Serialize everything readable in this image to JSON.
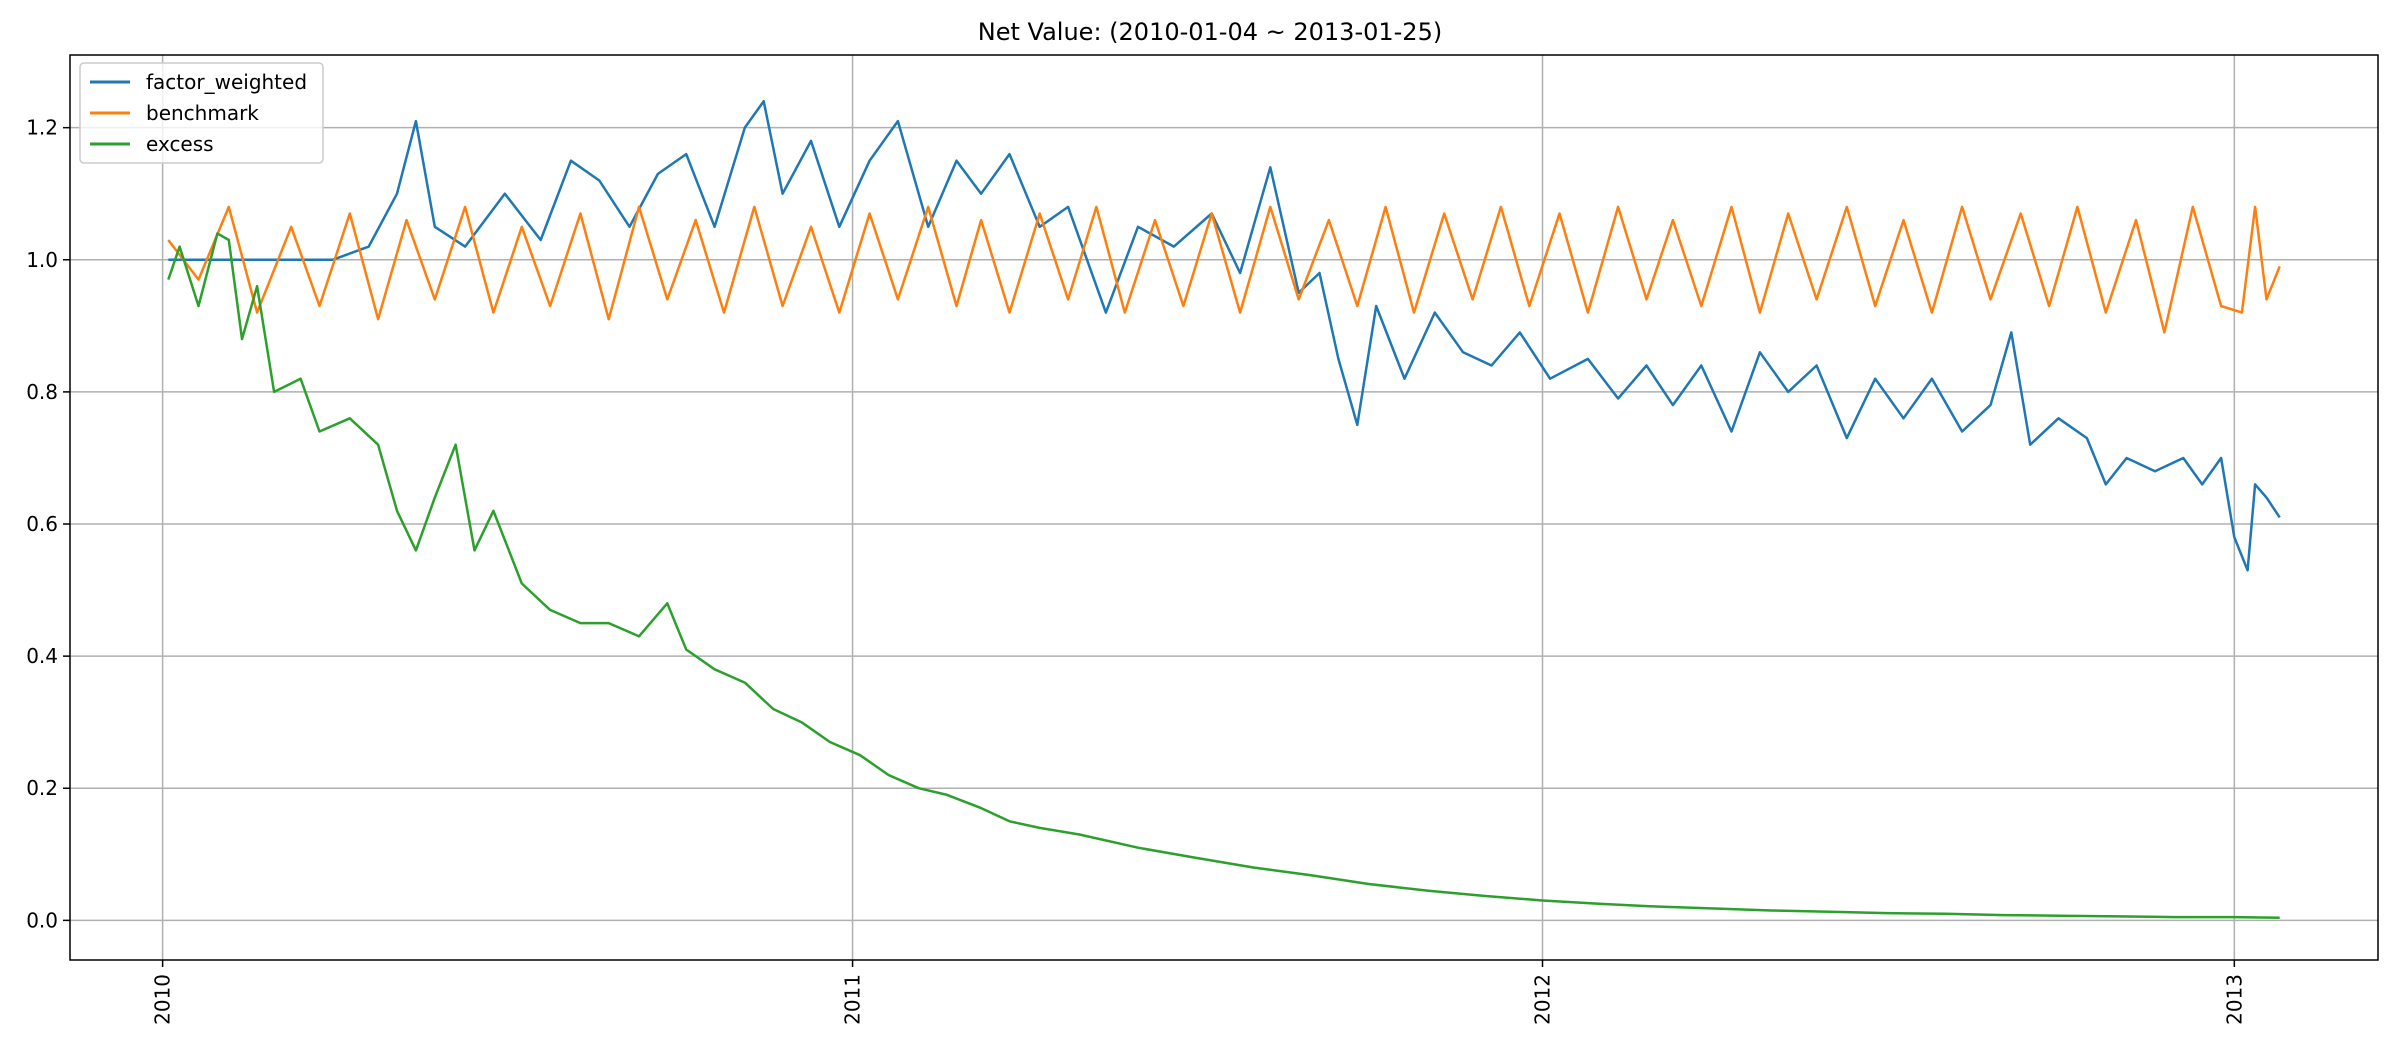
{
  "chart_data": {
    "type": "line",
    "title": "Net Value: (2010-01-04 ~ 2013-01-25)",
    "xlabel": "",
    "ylabel": "",
    "x_range": [
      "2010-01-04",
      "2013-01-25"
    ],
    "xlim": [
      "2009-11-13",
      "2013-03-18"
    ],
    "ylim": [
      -0.06,
      1.31
    ],
    "x_ticks": [
      "2010",
      "2011",
      "2012",
      "2013"
    ],
    "y_ticks": [
      "0.0",
      "0.2",
      "0.4",
      "0.6",
      "0.8",
      "1.0",
      "1.2"
    ],
    "grid": true,
    "legend_position": "upper left",
    "series": [
      {
        "name": "factor_weighted",
        "color": "#1f77b4",
        "points": [
          [
            "2010-01-04",
            1.0
          ],
          [
            "2010-04-01",
            1.0
          ],
          [
            "2010-04-20",
            1.02
          ],
          [
            "2010-05-05",
            1.1
          ],
          [
            "2010-05-15",
            1.21
          ],
          [
            "2010-05-25",
            1.05
          ],
          [
            "2010-06-10",
            1.02
          ],
          [
            "2010-07-01",
            1.1
          ],
          [
            "2010-07-20",
            1.03
          ],
          [
            "2010-08-05",
            1.15
          ],
          [
            "2010-08-20",
            1.12
          ],
          [
            "2010-09-05",
            1.05
          ],
          [
            "2010-09-20",
            1.13
          ],
          [
            "2010-10-05",
            1.16
          ],
          [
            "2010-10-20",
            1.05
          ],
          [
            "2010-11-05",
            1.2
          ],
          [
            "2010-11-15",
            1.24
          ],
          [
            "2010-11-25",
            1.1
          ],
          [
            "2010-12-10",
            1.18
          ],
          [
            "2010-12-25",
            1.05
          ],
          [
            "2011-01-10",
            1.15
          ],
          [
            "2011-01-25",
            1.21
          ],
          [
            "2011-02-10",
            1.05
          ],
          [
            "2011-02-25",
            1.15
          ],
          [
            "2011-03-10",
            1.1
          ],
          [
            "2011-03-25",
            1.16
          ],
          [
            "2011-04-10",
            1.05
          ],
          [
            "2011-04-25",
            1.08
          ],
          [
            "2011-05-15",
            0.92
          ],
          [
            "2011-06-01",
            1.05
          ],
          [
            "2011-06-20",
            1.02
          ],
          [
            "2011-07-10",
            1.07
          ],
          [
            "2011-07-25",
            0.98
          ],
          [
            "2011-08-10",
            1.14
          ],
          [
            "2011-08-25",
            0.95
          ],
          [
            "2011-09-05",
            0.98
          ],
          [
            "2011-09-15",
            0.85
          ],
          [
            "2011-09-25",
            0.75
          ],
          [
            "2011-10-05",
            0.93
          ],
          [
            "2011-10-20",
            0.82
          ],
          [
            "2011-11-05",
            0.92
          ],
          [
            "2011-11-20",
            0.86
          ],
          [
            "2011-12-05",
            0.84
          ],
          [
            "2011-12-20",
            0.89
          ],
          [
            "2012-01-05",
            0.82
          ],
          [
            "2012-01-25",
            0.85
          ],
          [
            "2012-02-10",
            0.79
          ],
          [
            "2012-02-25",
            0.84
          ],
          [
            "2012-03-10",
            0.78
          ],
          [
            "2012-03-25",
            0.84
          ],
          [
            "2012-04-10",
            0.74
          ],
          [
            "2012-04-25",
            0.86
          ],
          [
            "2012-05-10",
            0.8
          ],
          [
            "2012-05-25",
            0.84
          ],
          [
            "2012-06-10",
            0.73
          ],
          [
            "2012-06-25",
            0.82
          ],
          [
            "2012-07-10",
            0.76
          ],
          [
            "2012-07-25",
            0.82
          ],
          [
            "2012-08-10",
            0.74
          ],
          [
            "2012-08-25",
            0.78
          ],
          [
            "2012-09-05",
            0.89
          ],
          [
            "2012-09-15",
            0.72
          ],
          [
            "2012-09-30",
            0.76
          ],
          [
            "2012-10-15",
            0.73
          ],
          [
            "2012-10-25",
            0.66
          ],
          [
            "2012-11-05",
            0.7
          ],
          [
            "2012-11-20",
            0.68
          ],
          [
            "2012-12-05",
            0.7
          ],
          [
            "2012-12-15",
            0.66
          ],
          [
            "2012-12-25",
            0.7
          ],
          [
            "2013-01-01",
            0.58
          ],
          [
            "2013-01-08",
            0.53
          ],
          [
            "2013-01-12",
            0.66
          ],
          [
            "2013-01-18",
            0.64
          ],
          [
            "2013-01-25",
            0.61
          ]
        ]
      },
      {
        "name": "benchmark",
        "color": "#ff7f0e",
        "mean": 1.0,
        "band": [
          0.89,
          1.09
        ],
        "points": [
          [
            "2010-01-04",
            1.03
          ],
          [
            "2010-01-20",
            0.97
          ],
          [
            "2010-02-05",
            1.08
          ],
          [
            "2010-02-20",
            0.92
          ],
          [
            "2010-03-10",
            1.05
          ],
          [
            "2010-03-25",
            0.93
          ],
          [
            "2010-04-10",
            1.07
          ],
          [
            "2010-04-25",
            0.91
          ],
          [
            "2010-05-10",
            1.06
          ],
          [
            "2010-05-25",
            0.94
          ],
          [
            "2010-06-10",
            1.08
          ],
          [
            "2010-06-25",
            0.92
          ],
          [
            "2010-07-10",
            1.05
          ],
          [
            "2010-07-25",
            0.93
          ],
          [
            "2010-08-10",
            1.07
          ],
          [
            "2010-08-25",
            0.91
          ],
          [
            "2010-09-10",
            1.08
          ],
          [
            "2010-09-25",
            0.94
          ],
          [
            "2010-10-10",
            1.06
          ],
          [
            "2010-10-25",
            0.92
          ],
          [
            "2010-11-10",
            1.08
          ],
          [
            "2010-11-25",
            0.93
          ],
          [
            "2010-12-10",
            1.05
          ],
          [
            "2010-12-25",
            0.92
          ],
          [
            "2011-01-10",
            1.07
          ],
          [
            "2011-01-25",
            0.94
          ],
          [
            "2011-02-10",
            1.08
          ],
          [
            "2011-02-25",
            0.93
          ],
          [
            "2011-03-10",
            1.06
          ],
          [
            "2011-03-25",
            0.92
          ],
          [
            "2011-04-10",
            1.07
          ],
          [
            "2011-04-25",
            0.94
          ],
          [
            "2011-05-10",
            1.08
          ],
          [
            "2011-05-25",
            0.92
          ],
          [
            "2011-06-10",
            1.06
          ],
          [
            "2011-06-25",
            0.93
          ],
          [
            "2011-07-10",
            1.07
          ],
          [
            "2011-07-25",
            0.92
          ],
          [
            "2011-08-10",
            1.08
          ],
          [
            "2011-08-25",
            0.94
          ],
          [
            "2011-09-10",
            1.06
          ],
          [
            "2011-09-25",
            0.93
          ],
          [
            "2011-10-10",
            1.08
          ],
          [
            "2011-10-25",
            0.92
          ],
          [
            "2011-11-10",
            1.07
          ],
          [
            "2011-11-25",
            0.94
          ],
          [
            "2011-12-10",
            1.08
          ],
          [
            "2011-12-25",
            0.93
          ],
          [
            "2012-01-10",
            1.07
          ],
          [
            "2012-01-25",
            0.92
          ],
          [
            "2012-02-10",
            1.08
          ],
          [
            "2012-02-25",
            0.94
          ],
          [
            "2012-03-10",
            1.06
          ],
          [
            "2012-03-25",
            0.93
          ],
          [
            "2012-04-10",
            1.08
          ],
          [
            "2012-04-25",
            0.92
          ],
          [
            "2012-05-10",
            1.07
          ],
          [
            "2012-05-25",
            0.94
          ],
          [
            "2012-06-10",
            1.08
          ],
          [
            "2012-06-25",
            0.93
          ],
          [
            "2012-07-10",
            1.06
          ],
          [
            "2012-07-25",
            0.92
          ],
          [
            "2012-08-10",
            1.08
          ],
          [
            "2012-08-25",
            0.94
          ],
          [
            "2012-09-10",
            1.07
          ],
          [
            "2012-09-25",
            0.93
          ],
          [
            "2012-10-10",
            1.08
          ],
          [
            "2012-10-25",
            0.92
          ],
          [
            "2012-11-10",
            1.06
          ],
          [
            "2012-11-25",
            0.89
          ],
          [
            "2012-12-10",
            1.08
          ],
          [
            "2012-12-25",
            0.93
          ],
          [
            "2013-01-05",
            0.92
          ],
          [
            "2013-01-12",
            1.08
          ],
          [
            "2013-01-18",
            0.94
          ],
          [
            "2013-01-25",
            0.99
          ]
        ]
      },
      {
        "name": "excess",
        "color": "#2ca02c",
        "points": [
          [
            "2010-01-04",
            0.97
          ],
          [
            "2010-01-10",
            1.02
          ],
          [
            "2010-01-20",
            0.93
          ],
          [
            "2010-01-30",
            1.04
          ],
          [
            "2010-02-05",
            1.03
          ],
          [
            "2010-02-12",
            0.88
          ],
          [
            "2010-02-20",
            0.96
          ],
          [
            "2010-03-01",
            0.8
          ],
          [
            "2010-03-15",
            0.82
          ],
          [
            "2010-03-25",
            0.74
          ],
          [
            "2010-04-10",
            0.76
          ],
          [
            "2010-04-25",
            0.72
          ],
          [
            "2010-05-05",
            0.62
          ],
          [
            "2010-05-15",
            0.56
          ],
          [
            "2010-05-25",
            0.64
          ],
          [
            "2010-06-05",
            0.72
          ],
          [
            "2010-06-15",
            0.56
          ],
          [
            "2010-06-25",
            0.62
          ],
          [
            "2010-07-10",
            0.51
          ],
          [
            "2010-07-25",
            0.47
          ],
          [
            "2010-08-10",
            0.45
          ],
          [
            "2010-08-25",
            0.45
          ],
          [
            "2010-09-10",
            0.43
          ],
          [
            "2010-09-25",
            0.48
          ],
          [
            "2010-10-05",
            0.41
          ],
          [
            "2010-10-20",
            0.38
          ],
          [
            "2010-11-05",
            0.36
          ],
          [
            "2010-11-20",
            0.32
          ],
          [
            "2010-12-05",
            0.3
          ],
          [
            "2010-12-20",
            0.27
          ],
          [
            "2011-01-05",
            0.25
          ],
          [
            "2011-01-20",
            0.22
          ],
          [
            "2011-02-05",
            0.2
          ],
          [
            "2011-02-20",
            0.19
          ],
          [
            "2011-03-10",
            0.17
          ],
          [
            "2011-03-25",
            0.15
          ],
          [
            "2011-04-10",
            0.14
          ],
          [
            "2011-05-01",
            0.13
          ],
          [
            "2011-06-01",
            0.11
          ],
          [
            "2011-07-01",
            0.095
          ],
          [
            "2011-08-01",
            0.08
          ],
          [
            "2011-09-01",
            0.068
          ],
          [
            "2011-10-01",
            0.055
          ],
          [
            "2011-11-01",
            0.045
          ],
          [
            "2011-12-01",
            0.037
          ],
          [
            "2012-01-01",
            0.03
          ],
          [
            "2012-02-01",
            0.025
          ],
          [
            "2012-03-01",
            0.021
          ],
          [
            "2012-04-01",
            0.018
          ],
          [
            "2012-05-01",
            0.015
          ],
          [
            "2012-06-01",
            0.013
          ],
          [
            "2012-07-01",
            0.011
          ],
          [
            "2012-08-01",
            0.01
          ],
          [
            "2012-09-01",
            0.008
          ],
          [
            "2012-10-01",
            0.007
          ],
          [
            "2012-11-01",
            0.006
          ],
          [
            "2012-12-01",
            0.005
          ],
          [
            "2013-01-01",
            0.005
          ],
          [
            "2013-01-25",
            0.004
          ]
        ]
      }
    ]
  }
}
